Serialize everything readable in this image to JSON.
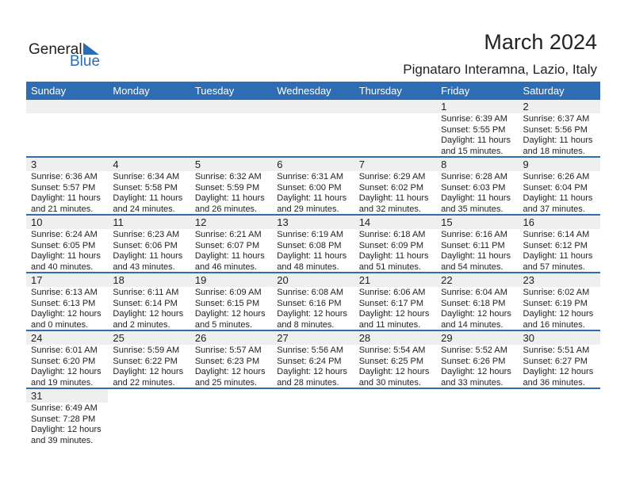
{
  "logo": {
    "general": "General",
    "blue": "Blue"
  },
  "title": "March 2024",
  "location": "Pignataro Interamna, Lazio, Italy",
  "colors": {
    "accent": "#2e6db4",
    "day_band": "#efefef"
  },
  "weekdays": [
    "Sunday",
    "Monday",
    "Tuesday",
    "Wednesday",
    "Thursday",
    "Friday",
    "Saturday"
  ],
  "weeks": [
    [
      null,
      null,
      null,
      null,
      null,
      {
        "day": "1",
        "sunrise": "Sunrise: 6:39 AM",
        "sunset": "Sunset: 5:55 PM",
        "daylight1": "Daylight: 11 hours",
        "daylight2": "and 15 minutes."
      },
      {
        "day": "2",
        "sunrise": "Sunrise: 6:37 AM",
        "sunset": "Sunset: 5:56 PM",
        "daylight1": "Daylight: 11 hours",
        "daylight2": "and 18 minutes."
      }
    ],
    [
      {
        "day": "3",
        "sunrise": "Sunrise: 6:36 AM",
        "sunset": "Sunset: 5:57 PM",
        "daylight1": "Daylight: 11 hours",
        "daylight2": "and 21 minutes."
      },
      {
        "day": "4",
        "sunrise": "Sunrise: 6:34 AM",
        "sunset": "Sunset: 5:58 PM",
        "daylight1": "Daylight: 11 hours",
        "daylight2": "and 24 minutes."
      },
      {
        "day": "5",
        "sunrise": "Sunrise: 6:32 AM",
        "sunset": "Sunset: 5:59 PM",
        "daylight1": "Daylight: 11 hours",
        "daylight2": "and 26 minutes."
      },
      {
        "day": "6",
        "sunrise": "Sunrise: 6:31 AM",
        "sunset": "Sunset: 6:00 PM",
        "daylight1": "Daylight: 11 hours",
        "daylight2": "and 29 minutes."
      },
      {
        "day": "7",
        "sunrise": "Sunrise: 6:29 AM",
        "sunset": "Sunset: 6:02 PM",
        "daylight1": "Daylight: 11 hours",
        "daylight2": "and 32 minutes."
      },
      {
        "day": "8",
        "sunrise": "Sunrise: 6:28 AM",
        "sunset": "Sunset: 6:03 PM",
        "daylight1": "Daylight: 11 hours",
        "daylight2": "and 35 minutes."
      },
      {
        "day": "9",
        "sunrise": "Sunrise: 6:26 AM",
        "sunset": "Sunset: 6:04 PM",
        "daylight1": "Daylight: 11 hours",
        "daylight2": "and 37 minutes."
      }
    ],
    [
      {
        "day": "10",
        "sunrise": "Sunrise: 6:24 AM",
        "sunset": "Sunset: 6:05 PM",
        "daylight1": "Daylight: 11 hours",
        "daylight2": "and 40 minutes."
      },
      {
        "day": "11",
        "sunrise": "Sunrise: 6:23 AM",
        "sunset": "Sunset: 6:06 PM",
        "daylight1": "Daylight: 11 hours",
        "daylight2": "and 43 minutes."
      },
      {
        "day": "12",
        "sunrise": "Sunrise: 6:21 AM",
        "sunset": "Sunset: 6:07 PM",
        "daylight1": "Daylight: 11 hours",
        "daylight2": "and 46 minutes."
      },
      {
        "day": "13",
        "sunrise": "Sunrise: 6:19 AM",
        "sunset": "Sunset: 6:08 PM",
        "daylight1": "Daylight: 11 hours",
        "daylight2": "and 48 minutes."
      },
      {
        "day": "14",
        "sunrise": "Sunrise: 6:18 AM",
        "sunset": "Sunset: 6:09 PM",
        "daylight1": "Daylight: 11 hours",
        "daylight2": "and 51 minutes."
      },
      {
        "day": "15",
        "sunrise": "Sunrise: 6:16 AM",
        "sunset": "Sunset: 6:11 PM",
        "daylight1": "Daylight: 11 hours",
        "daylight2": "and 54 minutes."
      },
      {
        "day": "16",
        "sunrise": "Sunrise: 6:14 AM",
        "sunset": "Sunset: 6:12 PM",
        "daylight1": "Daylight: 11 hours",
        "daylight2": "and 57 minutes."
      }
    ],
    [
      {
        "day": "17",
        "sunrise": "Sunrise: 6:13 AM",
        "sunset": "Sunset: 6:13 PM",
        "daylight1": "Daylight: 12 hours",
        "daylight2": "and 0 minutes."
      },
      {
        "day": "18",
        "sunrise": "Sunrise: 6:11 AM",
        "sunset": "Sunset: 6:14 PM",
        "daylight1": "Daylight: 12 hours",
        "daylight2": "and 2 minutes."
      },
      {
        "day": "19",
        "sunrise": "Sunrise: 6:09 AM",
        "sunset": "Sunset: 6:15 PM",
        "daylight1": "Daylight: 12 hours",
        "daylight2": "and 5 minutes."
      },
      {
        "day": "20",
        "sunrise": "Sunrise: 6:08 AM",
        "sunset": "Sunset: 6:16 PM",
        "daylight1": "Daylight: 12 hours",
        "daylight2": "and 8 minutes."
      },
      {
        "day": "21",
        "sunrise": "Sunrise: 6:06 AM",
        "sunset": "Sunset: 6:17 PM",
        "daylight1": "Daylight: 12 hours",
        "daylight2": "and 11 minutes."
      },
      {
        "day": "22",
        "sunrise": "Sunrise: 6:04 AM",
        "sunset": "Sunset: 6:18 PM",
        "daylight1": "Daylight: 12 hours",
        "daylight2": "and 14 minutes."
      },
      {
        "day": "23",
        "sunrise": "Sunrise: 6:02 AM",
        "sunset": "Sunset: 6:19 PM",
        "daylight1": "Daylight: 12 hours",
        "daylight2": "and 16 minutes."
      }
    ],
    [
      {
        "day": "24",
        "sunrise": "Sunrise: 6:01 AM",
        "sunset": "Sunset: 6:20 PM",
        "daylight1": "Daylight: 12 hours",
        "daylight2": "and 19 minutes."
      },
      {
        "day": "25",
        "sunrise": "Sunrise: 5:59 AM",
        "sunset": "Sunset: 6:22 PM",
        "daylight1": "Daylight: 12 hours",
        "daylight2": "and 22 minutes."
      },
      {
        "day": "26",
        "sunrise": "Sunrise: 5:57 AM",
        "sunset": "Sunset: 6:23 PM",
        "daylight1": "Daylight: 12 hours",
        "daylight2": "and 25 minutes."
      },
      {
        "day": "27",
        "sunrise": "Sunrise: 5:56 AM",
        "sunset": "Sunset: 6:24 PM",
        "daylight1": "Daylight: 12 hours",
        "daylight2": "and 28 minutes."
      },
      {
        "day": "28",
        "sunrise": "Sunrise: 5:54 AM",
        "sunset": "Sunset: 6:25 PM",
        "daylight1": "Daylight: 12 hours",
        "daylight2": "and 30 minutes."
      },
      {
        "day": "29",
        "sunrise": "Sunrise: 5:52 AM",
        "sunset": "Sunset: 6:26 PM",
        "daylight1": "Daylight: 12 hours",
        "daylight2": "and 33 minutes."
      },
      {
        "day": "30",
        "sunrise": "Sunrise: 5:51 AM",
        "sunset": "Sunset: 6:27 PM",
        "daylight1": "Daylight: 12 hours",
        "daylight2": "and 36 minutes."
      }
    ],
    [
      {
        "day": "31",
        "sunrise": "Sunrise: 6:49 AM",
        "sunset": "Sunset: 7:28 PM",
        "daylight1": "Daylight: 12 hours",
        "daylight2": "and 39 minutes."
      },
      null,
      null,
      null,
      null,
      null,
      null
    ]
  ]
}
